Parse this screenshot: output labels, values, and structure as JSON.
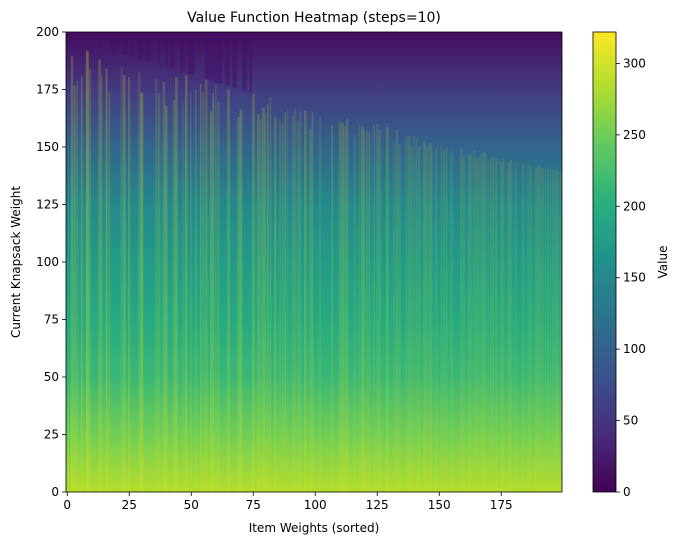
{
  "chart_data": {
    "type": "heatmap",
    "title": "Value Function Heatmap (steps=10)",
    "xlabel": "Item Weights (sorted)",
    "ylabel": "Current Knapsack Weight",
    "xlim": [
      0,
      199
    ],
    "ylim": [
      0,
      200
    ],
    "x_ticks": [
      0,
      25,
      50,
      75,
      100,
      125,
      150,
      175
    ],
    "y_ticks": [
      0,
      25,
      50,
      75,
      100,
      125,
      150,
      175,
      200
    ],
    "colorbar": {
      "label": "Value",
      "colormap": "viridis",
      "range": [
        0,
        322
      ],
      "ticks": [
        0,
        50,
        100,
        150,
        200,
        250,
        300
      ]
    },
    "value_model": {
      "description_of_surface": "value decreases roughly linearly with current weight; at weight 200 the value is near 0 and at weight 0 it reaches about 300",
      "anchor_values": [
        {
          "weight": 200,
          "value": 10
        },
        {
          "weight": 175,
          "value": 55
        },
        {
          "weight": 150,
          "value": 105
        },
        {
          "weight": 125,
          "value": 150
        },
        {
          "weight": 100,
          "value": 175
        },
        {
          "weight": 75,
          "value": 195
        },
        {
          "weight": 50,
          "value": 215
        },
        {
          "weight": 25,
          "value": 250
        },
        {
          "weight": 0,
          "value": 285
        }
      ]
    }
  }
}
